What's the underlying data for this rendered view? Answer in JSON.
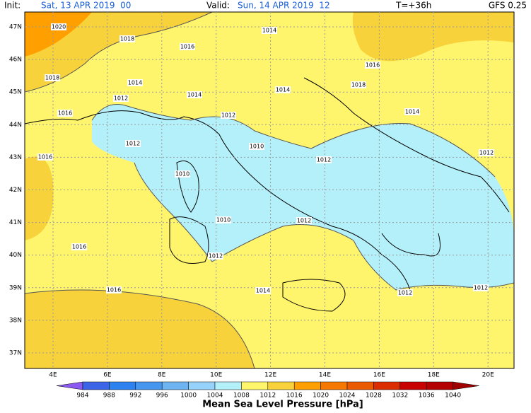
{
  "header": {
    "init_label": "Init:",
    "init_time": "Sat, 13 APR 2019  00",
    "valid_label": "Valid:",
    "valid_time": "Sun, 14 APR 2019  12",
    "lead": "T=+36h",
    "model": "GFS 0.25"
  },
  "lat_labels": [
    "47N",
    "46N",
    "45N",
    "44N",
    "43N",
    "42N",
    "41N",
    "40N",
    "39N",
    "38N",
    "37N"
  ],
  "lon_labels": [
    "4E",
    "6E",
    "8E",
    "10E",
    "12E",
    "14E",
    "16E",
    "18E",
    "20E"
  ],
  "contour_labels": [
    "1020",
    "1018",
    "1016",
    "1014",
    "1018",
    "1016",
    "1014",
    "1012",
    "1014",
    "1016",
    "1014",
    "1018",
    "1014",
    "1012",
    "1012",
    "1010",
    "1012",
    "1016",
    "1012",
    "1010",
    "1010",
    "1012",
    "1016",
    "1012",
    "1016",
    "1014",
    "1012",
    "1012"
  ],
  "colorbar": {
    "title": "Mean Sea Level Pressure [hPa]",
    "ticks": [
      "984",
      "988",
      "992",
      "996",
      "1000",
      "1004",
      "1008",
      "1012",
      "1016",
      "1020",
      "1024",
      "1028",
      "1032",
      "1036",
      "1040"
    ],
    "colors": [
      "#8c5af0",
      "#3c64e6",
      "#2d82f0",
      "#4696f0",
      "#6eb4f0",
      "#96d2fa",
      "#b4f0fa",
      "#fff56c",
      "#f7d23a",
      "#ffa000",
      "#f57800",
      "#eb5a00",
      "#dc2d00",
      "#c80000",
      "#b40000",
      "#a00000"
    ]
  }
}
